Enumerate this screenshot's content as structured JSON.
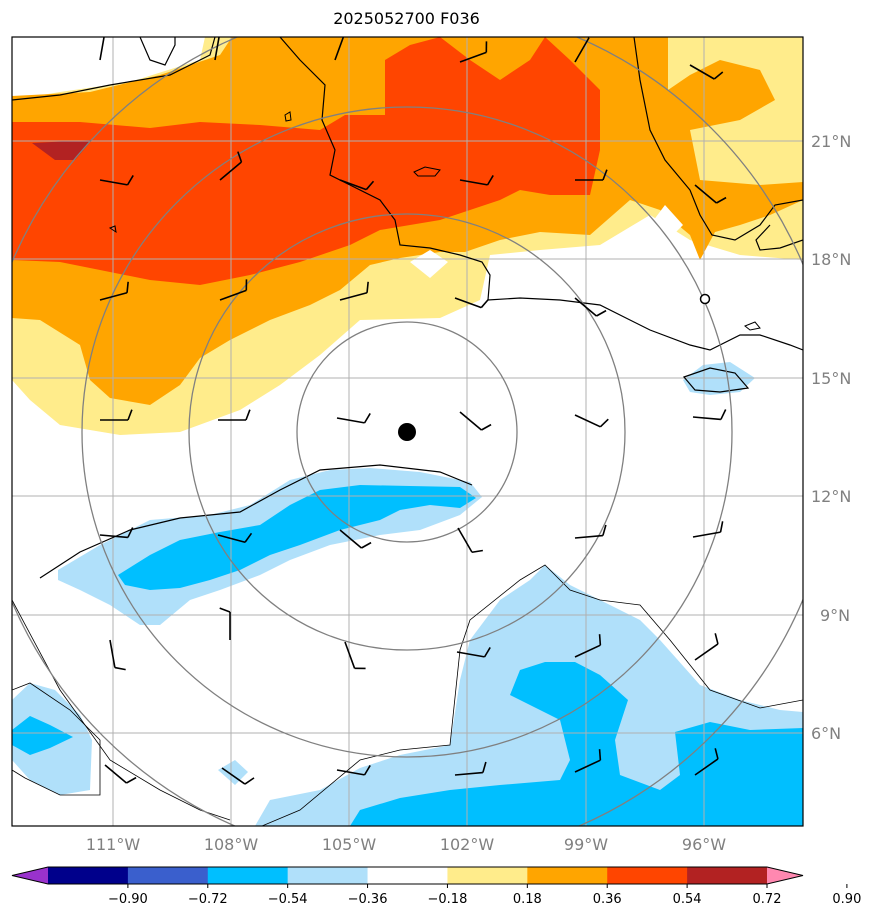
{
  "title": "2025052700 F036",
  "lat_labels": [
    "21°N",
    "18°N",
    "15°N",
    "12°N",
    "9°N",
    "6°N"
  ],
  "lon_labels": [
    "111°W",
    "108°W",
    "105°W",
    "102°W",
    "99°W",
    "96°W"
  ],
  "colorbar": {
    "ticks": [
      "−0.90",
      "−0.72",
      "−0.54",
      "−0.36",
      "−0.18",
      "0.18",
      "0.36",
      "0.54",
      "0.72",
      "0.90"
    ],
    "colors": [
      "#9932cc",
      "#00008b",
      "#3a5fcd",
      "#00bfff",
      "#b0e0fa",
      "#ffffff",
      "#ffec8b",
      "#ffa500",
      "#ff4500",
      "#b22222",
      "#ff88b0"
    ]
  },
  "colors": {
    "land_outline": "#000000",
    "range_rings": "#808080",
    "gridlines": "#b0b0b0",
    "center_marker": "#000000"
  }
}
